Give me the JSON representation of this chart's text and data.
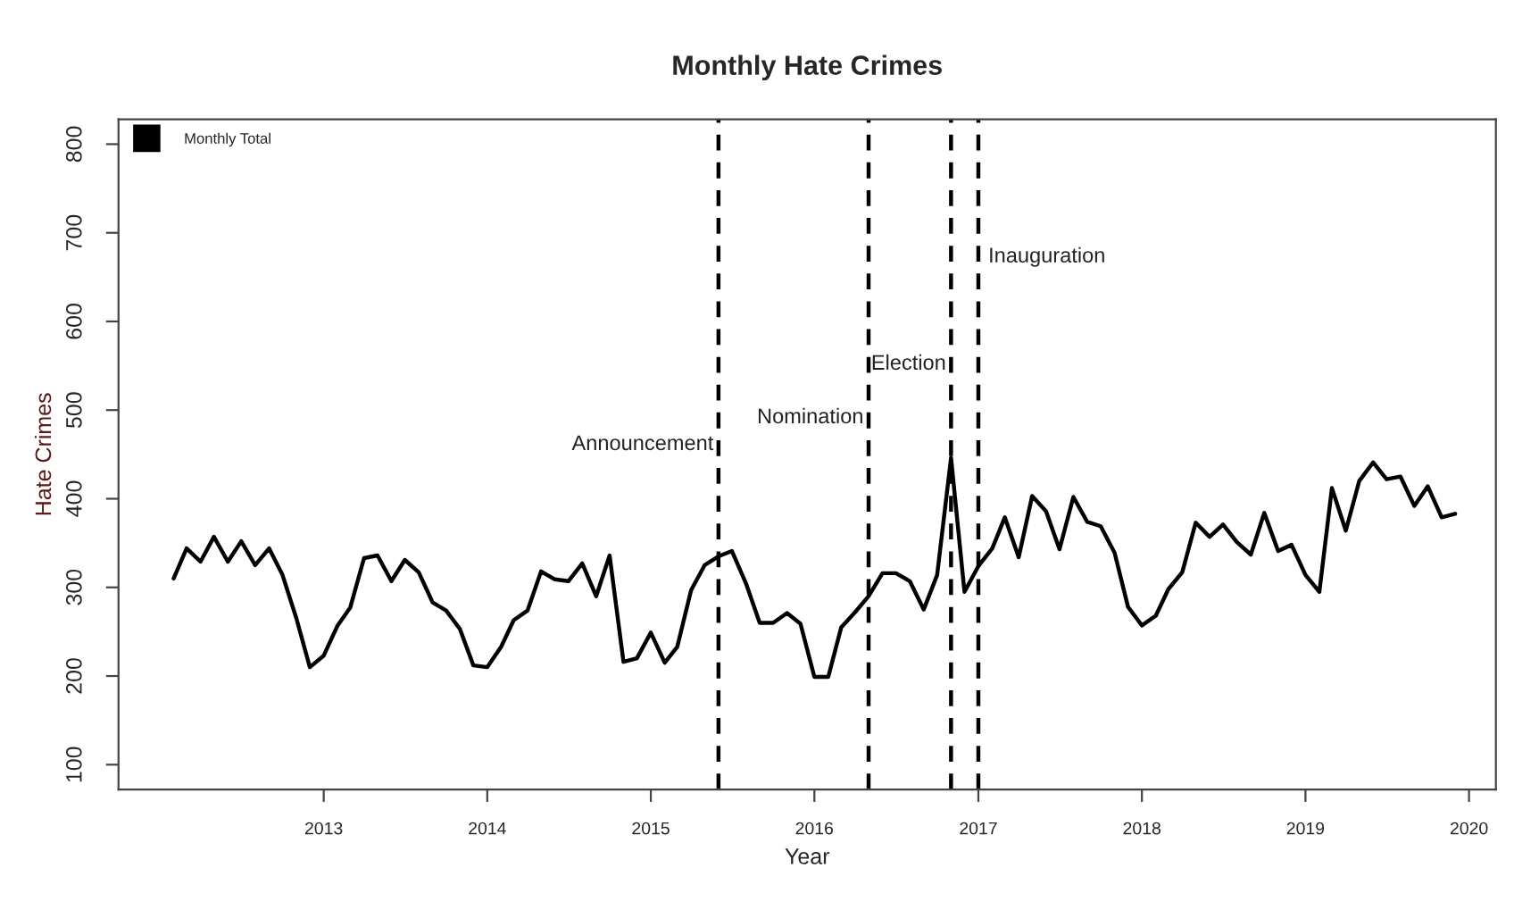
{
  "chart_data": {
    "type": "line",
    "title": "Monthly Hate Crimes",
    "xlabel": "Year",
    "ylabel": "Hate Crimes",
    "x": [
      "2012-02",
      "2012-03",
      "2012-04",
      "2012-05",
      "2012-06",
      "2012-07",
      "2012-08",
      "2012-09",
      "2012-10",
      "2012-11",
      "2012-12",
      "2013-01",
      "2013-02",
      "2013-03",
      "2013-04",
      "2013-05",
      "2013-06",
      "2013-07",
      "2013-08",
      "2013-09",
      "2013-10",
      "2013-11",
      "2013-12",
      "2014-01",
      "2014-02",
      "2014-03",
      "2014-04",
      "2014-05",
      "2014-06",
      "2014-07",
      "2014-08",
      "2014-09",
      "2014-10",
      "2014-11",
      "2014-12",
      "2015-01",
      "2015-02",
      "2015-03",
      "2015-04",
      "2015-05",
      "2015-06",
      "2015-07",
      "2015-08",
      "2015-09",
      "2015-10",
      "2015-11",
      "2015-12",
      "2016-01",
      "2016-02",
      "2016-03",
      "2016-04",
      "2016-05",
      "2016-06",
      "2016-07",
      "2016-08",
      "2016-09",
      "2016-10",
      "2016-11",
      "2016-12",
      "2017-01",
      "2017-02",
      "2017-03",
      "2017-04",
      "2017-05",
      "2017-06",
      "2017-07",
      "2017-08",
      "2017-09",
      "2017-10",
      "2017-11",
      "2017-12",
      "2018-01",
      "2018-02",
      "2018-03",
      "2018-04",
      "2018-05",
      "2018-06",
      "2018-07",
      "2018-08",
      "2018-09",
      "2018-10",
      "2018-11",
      "2018-12",
      "2019-01",
      "2019-02",
      "2019-03",
      "2019-04",
      "2019-05",
      "2019-06",
      "2019-07",
      "2019-08",
      "2019-09",
      "2019-10",
      "2019-11",
      "2019-12"
    ],
    "series": [
      {
        "name": "Monthly Total",
        "color": "#000000",
        "values": [
          310,
          344,
          329,
          357,
          329,
          352,
          325,
          344,
          314,
          265,
          210,
          223,
          257,
          277,
          333,
          336,
          307,
          331,
          317,
          283,
          274,
          253,
          212,
          210,
          233,
          263,
          274,
          318,
          309,
          307,
          327,
          290,
          336,
          216,
          220,
          249,
          215,
          233,
          297,
          325,
          335,
          341,
          305,
          260,
          260,
          271,
          259,
          199,
          199,
          255,
          272,
          290,
          316,
          316,
          307,
          275,
          314,
          446,
          295,
          324,
          344,
          379,
          334,
          403,
          386,
          343,
          402,
          374,
          369,
          339,
          278,
          257,
          268,
          298,
          317,
          373,
          357,
          371,
          351,
          337,
          384,
          341,
          348,
          314,
          295,
          412,
          364,
          420,
          441,
          422,
          425,
          392,
          414,
          379,
          383
        ]
      }
    ],
    "xlim": [
      "2011-10",
      "2020-03"
    ],
    "xticks": [
      {
        "value": "2013",
        "label": "2013"
      },
      {
        "value": "2014",
        "label": "2014"
      },
      {
        "value": "2015",
        "label": "2015"
      },
      {
        "value": "2016",
        "label": "2016"
      },
      {
        "value": "2017",
        "label": "2017"
      },
      {
        "value": "2018",
        "label": "2018"
      },
      {
        "value": "2019",
        "label": "2019"
      },
      {
        "value": "2020",
        "label": "2020"
      }
    ],
    "ylim": [
      72,
      828
    ],
    "yticks": [
      100,
      200,
      300,
      400,
      500,
      600,
      700,
      800
    ],
    "ref_lines": [
      {
        "axis": "x",
        "value": "2015-06",
        "label": "Announcement",
        "color": "#000000",
        "line_style": "dashed"
      },
      {
        "axis": "x",
        "value": "2016-05",
        "label": "Nomination",
        "color": "#000000",
        "line_style": "dashed"
      },
      {
        "axis": "x",
        "value": "2016-11",
        "label": "Election",
        "color": "#000000",
        "line_style": "dashed"
      },
      {
        "axis": "x",
        "value": "2017-01",
        "label": "Inauguration",
        "color": "#000000",
        "line_style": "dashed"
      }
    ],
    "legend": "top left",
    "grid": false,
    "marker": "none",
    "line_style": "solid"
  }
}
